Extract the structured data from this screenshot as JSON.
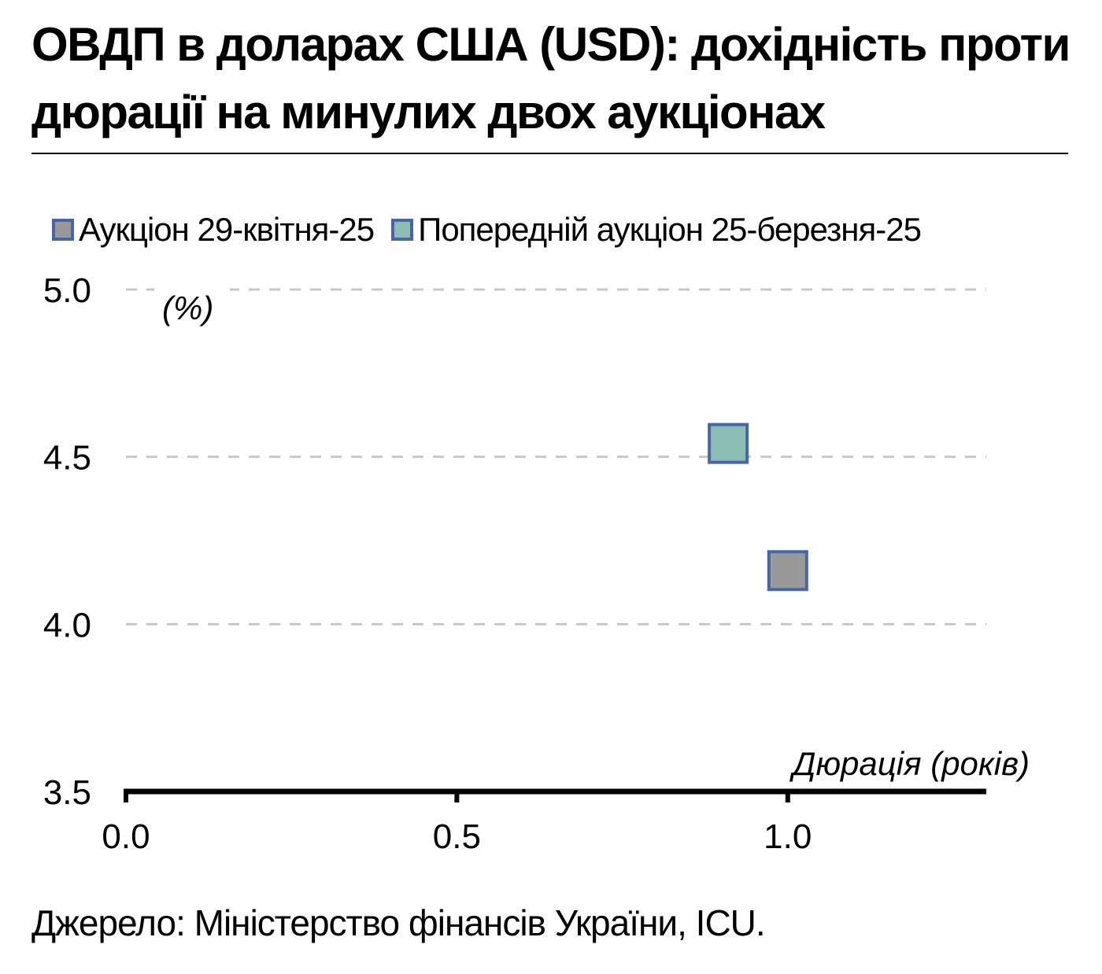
{
  "title": "ОВДП в доларах США (USD): дохідність проти дюрації на минулих двох аукціонах",
  "source": "Джерело: Міністерство фінансів України, ICU.",
  "legend": [
    {
      "label": "Аукціон 29-квітня-25",
      "color": "#999999",
      "border": "#4766a3"
    },
    {
      "label": "Попередній аукціон 25-березня-25",
      "color": "#8bbdb5",
      "border": "#4766a3"
    }
  ],
  "chart_data": {
    "type": "scatter",
    "ylabel": "(%)",
    "xlabel": "Дюрація (років)",
    "xlim": [
      0,
      1.3
    ],
    "ylim": [
      3.5,
      5.0
    ],
    "xticks": [
      "0.0",
      "0.5",
      "1.0"
    ],
    "yticks": [
      "3.5",
      "4.0",
      "4.5",
      "5.0"
    ],
    "grid": true,
    "legend_position": "top",
    "series": [
      {
        "name": "Аукціон 29-квітня-25",
        "points": [
          {
            "x": 1.0,
            "y": 4.16
          }
        ]
      },
      {
        "name": "Попередній аукціон 25-березня-25",
        "points": [
          {
            "x": 0.91,
            "y": 4.54
          }
        ]
      }
    ]
  }
}
